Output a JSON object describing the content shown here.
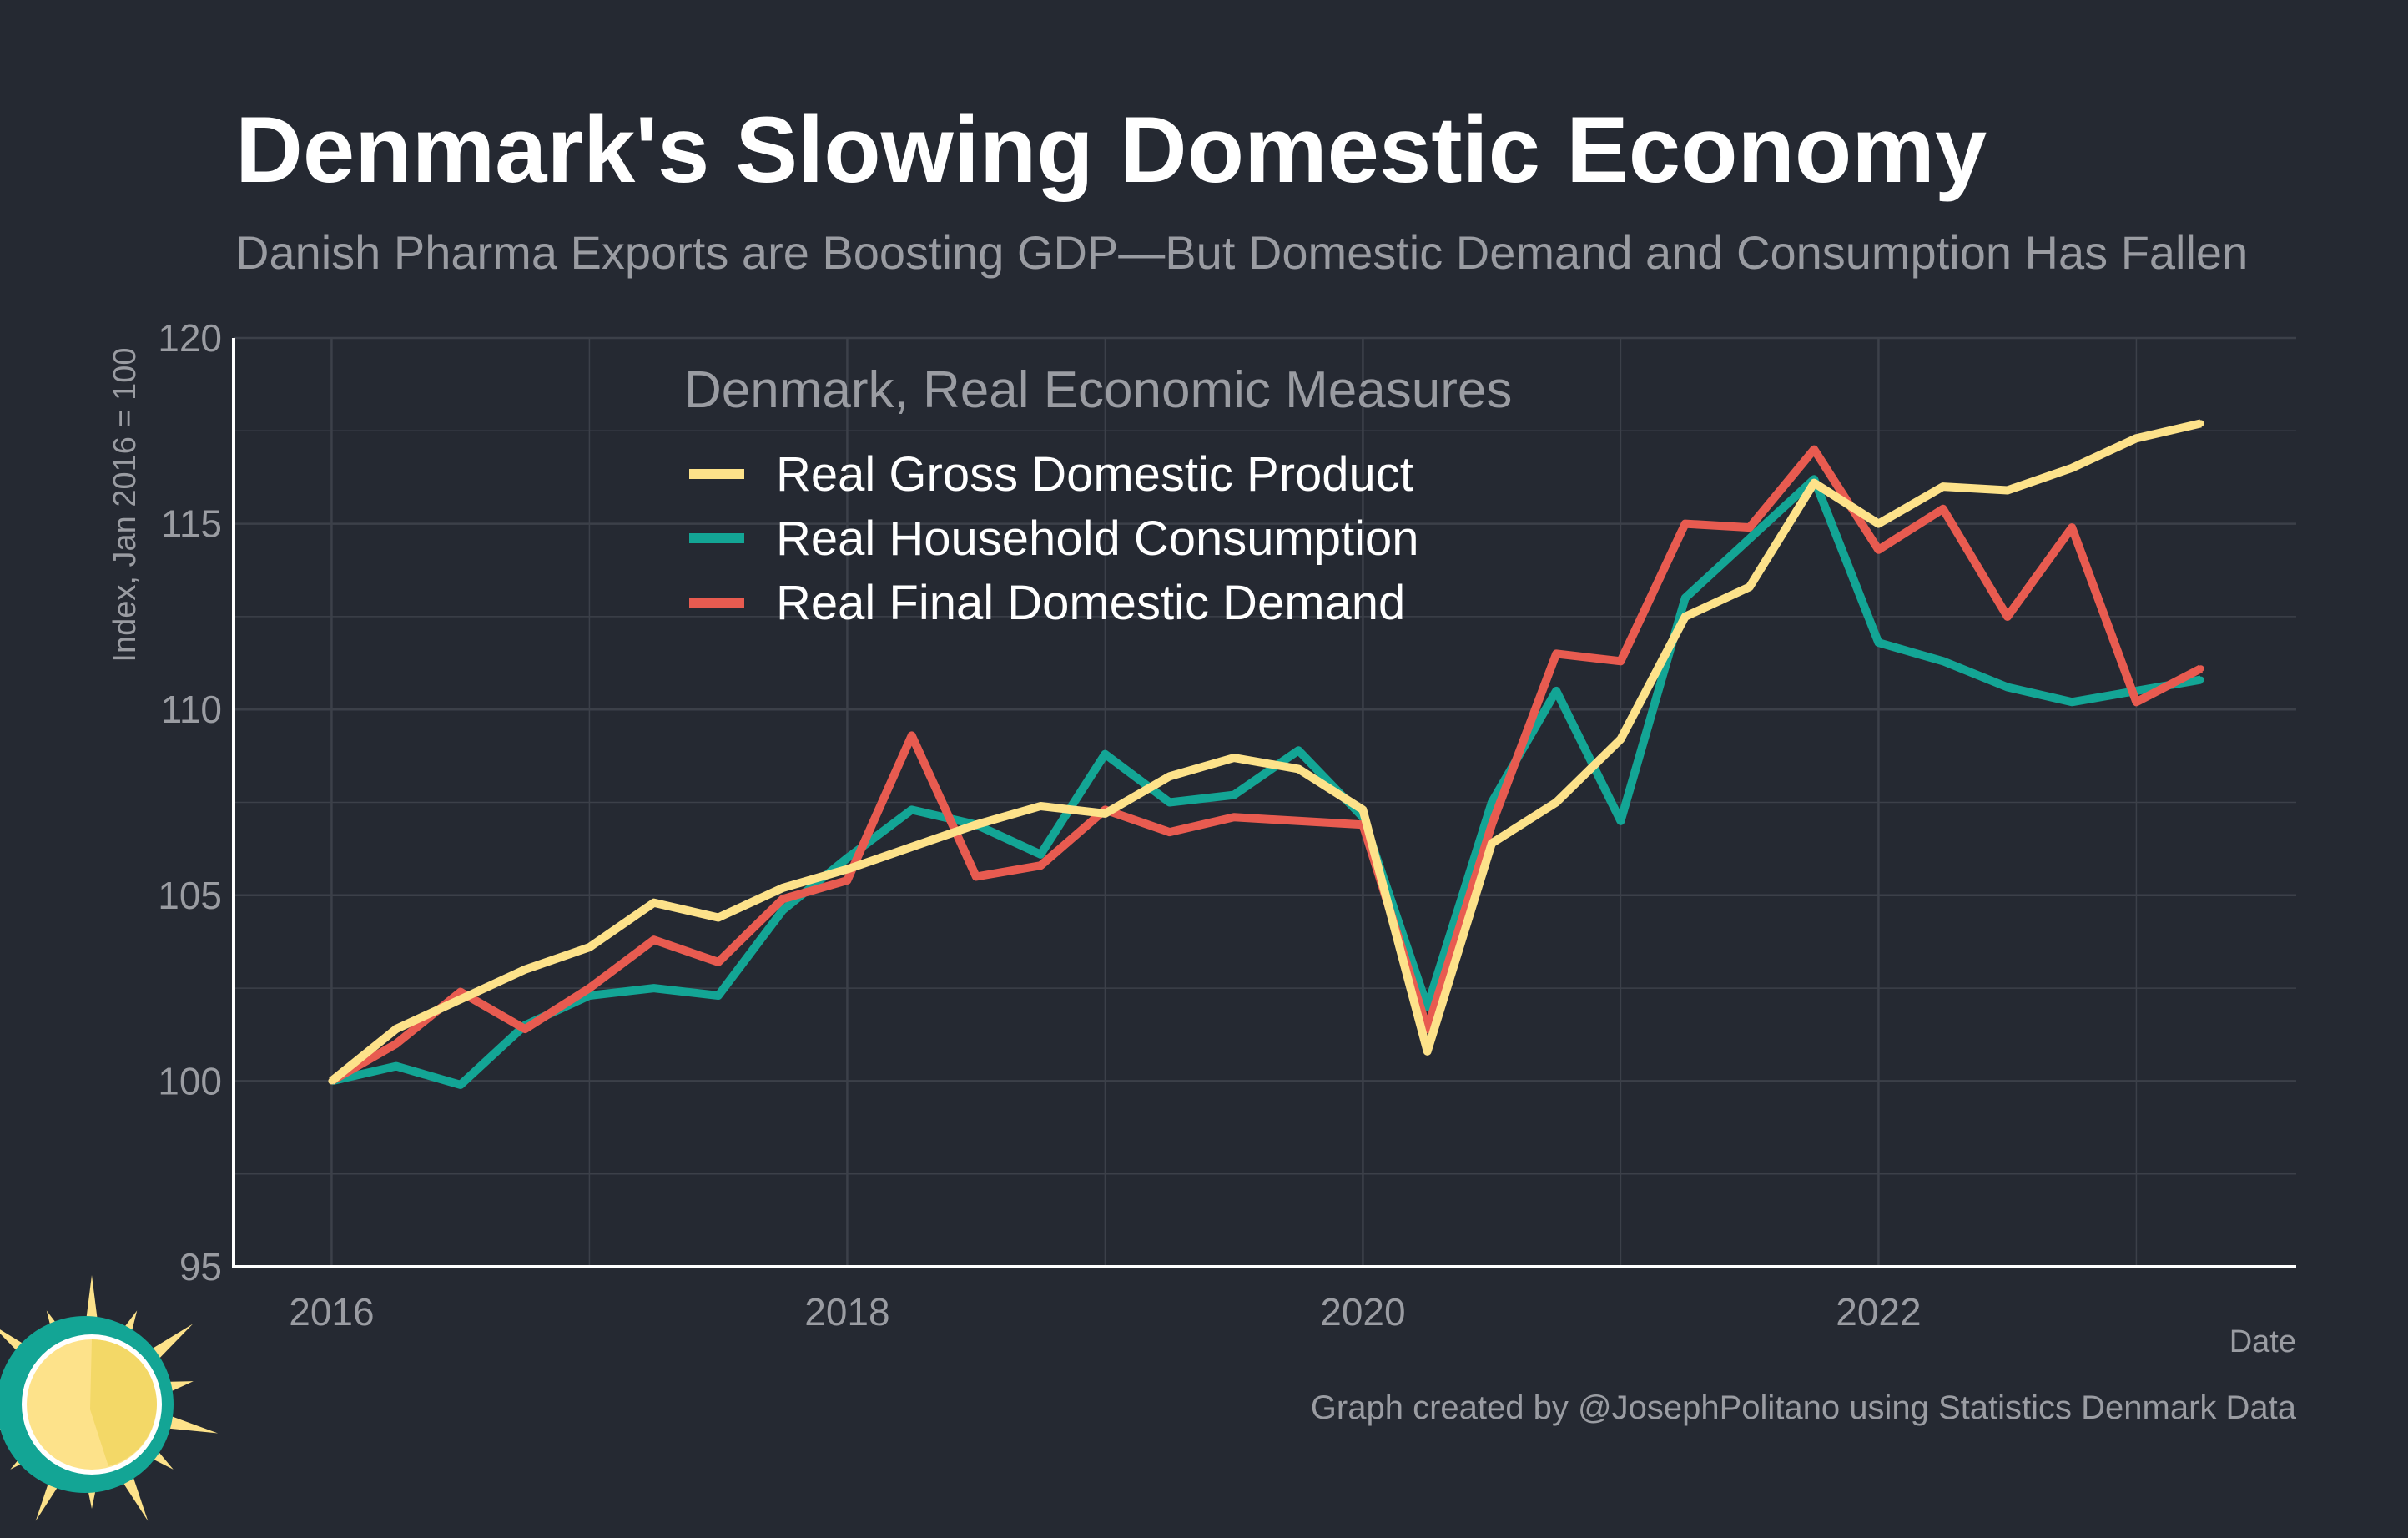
{
  "chart_data": {
    "type": "line",
    "title": "Denmark's Slowing Domestic Economy",
    "subtitle": "Danish Pharma Exports are Boosting GDP—But Domestic Demand and Consumption Has Fallen",
    "xlabel": "Date",
    "ylabel": "Index, Jan 2016 = 100",
    "xlim": [
      2015.62,
      2023.62
    ],
    "ylim": [
      95,
      120
    ],
    "x_ticks": [
      {
        "value": 2016,
        "label": "2016"
      },
      {
        "value": 2018,
        "label": "2018"
      },
      {
        "value": 2020,
        "label": "2020"
      },
      {
        "value": 2022,
        "label": "2022"
      }
    ],
    "y_ticks": [
      {
        "value": 95,
        "label": "95"
      },
      {
        "value": 100,
        "label": "100"
      },
      {
        "value": 105,
        "label": "105"
      },
      {
        "value": 110,
        "label": "110"
      },
      {
        "value": 115,
        "label": "115"
      },
      {
        "value": 120,
        "label": "120"
      }
    ],
    "grid": true,
    "legend_title": "Denmark, Real Economic Measures",
    "legend_position": "top-center",
    "x": [
      2016.0,
      2016.25,
      2016.5,
      2016.75,
      2017.0,
      2017.25,
      2017.5,
      2017.75,
      2018.0,
      2018.25,
      2018.5,
      2018.75,
      2019.0,
      2019.25,
      2019.5,
      2019.75,
      2020.0,
      2020.25,
      2020.5,
      2020.75,
      2021.0,
      2021.25,
      2021.5,
      2021.75,
      2022.0,
      2022.25,
      2022.5,
      2022.75,
      2023.0,
      2023.25
    ],
    "series": [
      {
        "name": "Real Household Consumption",
        "color": "#13a595",
        "values": [
          100.0,
          100.4,
          99.9,
          101.5,
          102.3,
          102.5,
          102.3,
          104.6,
          106.0,
          107.3,
          106.9,
          106.1,
          108.8,
          107.5,
          107.7,
          108.9,
          107.1,
          102.0,
          107.5,
          110.5,
          107.0,
          113.0,
          114.6,
          116.2,
          111.8,
          111.3,
          110.6,
          110.2,
          110.5,
          110.8
        ]
      },
      {
        "name": "Real Final Domestic Demand",
        "color": "#e85b50",
        "values": [
          100.0,
          101.0,
          102.4,
          101.4,
          102.5,
          103.8,
          103.2,
          104.9,
          105.4,
          109.3,
          105.5,
          105.8,
          107.3,
          106.7,
          107.1,
          107.0,
          106.9,
          101.4,
          106.9,
          111.5,
          111.3,
          115.0,
          114.9,
          117.0,
          114.3,
          115.4,
          112.5,
          114.9,
          110.2,
          111.1
        ]
      },
      {
        "name": "Real Gross Domestic Product",
        "color": "#fde28a",
        "values": [
          100.0,
          101.4,
          102.2,
          103.0,
          103.6,
          104.8,
          104.4,
          105.2,
          105.7,
          106.3,
          106.9,
          107.4,
          107.2,
          108.2,
          108.7,
          108.4,
          107.3,
          100.8,
          106.4,
          107.5,
          109.2,
          112.5,
          113.3,
          116.1,
          115.0,
          116.0,
          115.9,
          116.5,
          117.3,
          117.7
        ]
      }
    ],
    "legend_order": [
      "Real Gross Domestic Product",
      "Real Household Consumption",
      "Real Final Domestic Demand"
    ],
    "caption": "Graph created by @JosephPolitano using Statistics Denmark Data"
  },
  "colors": {
    "background": "#252932",
    "grid": "#3c4049",
    "axis": "#ffffff",
    "muted_text": "#9a9ca2",
    "logo_sun": "#fde28a",
    "logo_ring": "#13a595"
  },
  "logo": {
    "icon": "sun-logo-icon"
  }
}
